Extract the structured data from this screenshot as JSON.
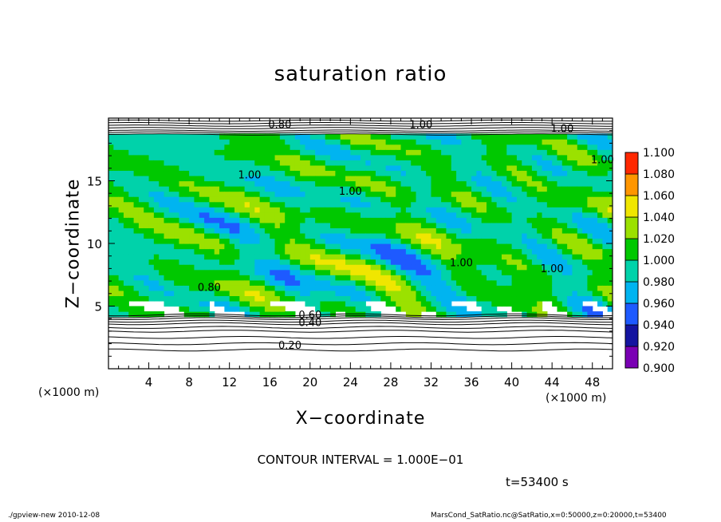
{
  "chart_data": {
    "type": "heatmap",
    "title": "saturation ratio",
    "xlabel": "X−coordinate",
    "ylabel": "Z−coordinate",
    "x_units": "(×1000 m)",
    "xlim": [
      0,
      50
    ],
    "ylim": [
      0,
      20
    ],
    "x_ticks": [
      4,
      8,
      12,
      16,
      20,
      24,
      28,
      32,
      36,
      40,
      44,
      48
    ],
    "y_ticks": [
      5,
      10,
      15
    ],
    "colorbar": {
      "levels": [
        0.9,
        0.92,
        0.94,
        0.96,
        0.98,
        1.0,
        1.02,
        1.04,
        1.06,
        1.08,
        1.1
      ],
      "tick_labels": [
        "0.900",
        "0.920",
        "0.940",
        "0.960",
        "0.980",
        "1.000",
        "1.020",
        "1.040",
        "1.060",
        "1.080",
        "1.100"
      ],
      "colors": [
        "#7a00b4",
        "#1414a0",
        "#1e5aff",
        "#00b4f0",
        "#00d2aa",
        "#00c800",
        "#9be100",
        "#f0e600",
        "#ff9600",
        "#ff2800",
        "#ff8c8c"
      ]
    },
    "contour_labels": [
      "0.80",
      "1.00",
      "1.00",
      "1.00",
      "1.00",
      "1.00",
      "1.00",
      "1.00",
      "0.80",
      "0.60",
      "0.40",
      "0.20"
    ],
    "contour_interval_text": "CONTOUR INTERVAL = 1.000E−01",
    "time_text": "t=53400 s"
  },
  "footer": {
    "left": "./gpview-new  2010-12-08",
    "right": "MarsCond_SatRatio.nc@SatRatio,x=0:50000,z=0:20000,t=53400"
  }
}
